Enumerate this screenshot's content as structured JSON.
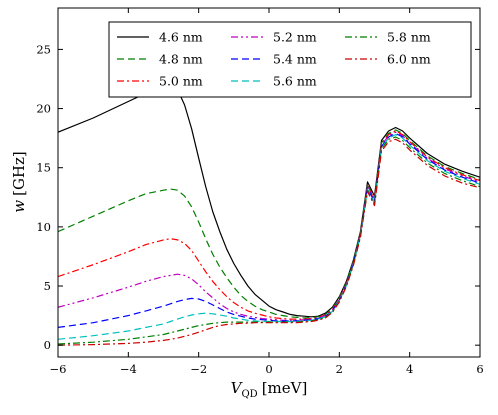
{
  "chart_data": {
    "type": "line",
    "xlabel": "V_QD [meV]",
    "xlabel_main": "V",
    "xlabel_sub": "QD",
    "xlabel_unit": "[meV]",
    "ylabel": "w [GHz]",
    "ylabel_main": "w",
    "ylabel_unit": "[GHz]",
    "xlim": [
      -6,
      6
    ],
    "ylim": [
      -1,
      28.5
    ],
    "xticks": [
      -6,
      -4,
      -2,
      0,
      2,
      4,
      6
    ],
    "xtick_labels": [
      "−6",
      "−4",
      "−2",
      "0",
      "2",
      "4",
      "6"
    ],
    "yticks": [
      0,
      5,
      10,
      15,
      20,
      25
    ],
    "ytick_labels": [
      "0",
      "5",
      "10",
      "15",
      "20",
      "25"
    ],
    "grid": false,
    "legend_position": "top-right",
    "legend_columns": 3,
    "series": [
      {
        "name": "4.6 nm",
        "color": "#000000",
        "dash": "solid",
        "x": [
          -6,
          -5,
          -4,
          -3.5,
          -3,
          -2.8,
          -2.6,
          -2.4,
          -2.2,
          -2,
          -1.8,
          -1.6,
          -1.4,
          -1.2,
          -1,
          -0.8,
          -0.6,
          -0.4,
          -0.2,
          0,
          0.2,
          0.4,
          0.6,
          0.8,
          1,
          1.2,
          1.4,
          1.6,
          1.8,
          2,
          2.2,
          2.4,
          2.6,
          2.8,
          3,
          3.2,
          3.4,
          3.6,
          3.8,
          4,
          4.5,
          5,
          5.5,
          6
        ],
        "y": [
          18.0,
          19.2,
          20.6,
          21.3,
          21.8,
          21.9,
          21.6,
          20.3,
          18.3,
          15.8,
          13.4,
          11.3,
          9.6,
          8.1,
          6.9,
          5.9,
          5.0,
          4.3,
          3.8,
          3.3,
          3.0,
          2.8,
          2.6,
          2.5,
          2.45,
          2.4,
          2.45,
          2.7,
          3.2,
          4.1,
          5.4,
          7.2,
          9.6,
          13.8,
          12.6,
          17.3,
          18.1,
          18.4,
          18.1,
          17.5,
          16.2,
          15.3,
          14.7,
          14.2
        ]
      },
      {
        "name": "4.8 nm",
        "color": "#007f00",
        "dash": "dashed",
        "x": [
          -6,
          -5,
          -4,
          -3.5,
          -3,
          -2.8,
          -2.6,
          -2.4,
          -2.2,
          -2,
          -1.8,
          -1.6,
          -1.4,
          -1.2,
          -1,
          -0.8,
          -0.6,
          -0.4,
          -0.2,
          0,
          0.2,
          0.4,
          0.6,
          0.8,
          1,
          1.2,
          1.4,
          1.6,
          1.8,
          2,
          2.2,
          2.4,
          2.6,
          2.8,
          3,
          3.2,
          3.4,
          3.6,
          3.8,
          4,
          4.5,
          5,
          5.5,
          6
        ],
        "y": [
          9.6,
          10.9,
          12.2,
          12.8,
          13.1,
          13.2,
          13.1,
          12.6,
          11.7,
          10.4,
          9.0,
          7.7,
          6.6,
          5.7,
          4.9,
          4.2,
          3.7,
          3.3,
          3.0,
          2.8,
          2.6,
          2.5,
          2.4,
          2.35,
          2.3,
          2.35,
          2.4,
          2.6,
          3.1,
          4.0,
          5.3,
          7.1,
          9.5,
          13.6,
          12.4,
          17.1,
          17.9,
          18.2,
          17.9,
          17.3,
          16.0,
          15.1,
          14.5,
          14.0
        ]
      },
      {
        "name": "5.0 nm",
        "color": "#ff0000",
        "dash": "dashdot",
        "x": [
          -6,
          -5,
          -4,
          -3.5,
          -3,
          -2.8,
          -2.6,
          -2.4,
          -2.2,
          -2,
          -1.8,
          -1.6,
          -1.4,
          -1.2,
          -1,
          -0.8,
          -0.6,
          -0.4,
          -0.2,
          0,
          0.2,
          0.4,
          0.6,
          0.8,
          1,
          1.2,
          1.4,
          1.6,
          1.8,
          2,
          2.2,
          2.4,
          2.6,
          2.8,
          3,
          3.2,
          3.4,
          3.6,
          3.8,
          4,
          4.5,
          5,
          5.5,
          6
        ],
        "y": [
          5.8,
          6.8,
          7.9,
          8.5,
          8.9,
          9.0,
          8.9,
          8.6,
          8.0,
          7.1,
          6.2,
          5.4,
          4.7,
          4.1,
          3.6,
          3.2,
          2.9,
          2.7,
          2.55,
          2.4,
          2.3,
          2.25,
          2.2,
          2.2,
          2.2,
          2.25,
          2.35,
          2.55,
          3.0,
          3.9,
          5.2,
          7.0,
          9.4,
          13.5,
          12.3,
          17.0,
          17.8,
          18.1,
          17.8,
          17.2,
          15.9,
          15.0,
          14.4,
          13.9
        ]
      },
      {
        "name": "5.2 nm",
        "color": "#bf00bf",
        "dash": "dashdotdot",
        "x": [
          -6,
          -5,
          -4,
          -3.5,
          -3,
          -2.8,
          -2.6,
          -2.4,
          -2.2,
          -2,
          -1.8,
          -1.6,
          -1.4,
          -1.2,
          -1,
          -0.8,
          -0.6,
          -0.4,
          -0.2,
          0,
          0.2,
          0.4,
          0.6,
          0.8,
          1,
          1.2,
          1.4,
          1.6,
          1.8,
          2,
          2.2,
          2.4,
          2.6,
          2.8,
          3,
          3.2,
          3.4,
          3.6,
          3.8,
          4,
          4.5,
          5,
          5.5,
          6
        ],
        "y": [
          3.2,
          4.0,
          4.9,
          5.4,
          5.8,
          5.9,
          6.0,
          5.9,
          5.6,
          5.1,
          4.5,
          4.0,
          3.5,
          3.1,
          2.8,
          2.6,
          2.45,
          2.35,
          2.25,
          2.2,
          2.15,
          2.1,
          2.1,
          2.1,
          2.15,
          2.2,
          2.3,
          2.5,
          2.95,
          3.85,
          5.15,
          6.95,
          9.35,
          13.4,
          12.2,
          16.9,
          17.7,
          18.0,
          17.7,
          17.1,
          15.8,
          14.9,
          14.3,
          13.8
        ]
      },
      {
        "name": "5.4 nm",
        "color": "#0000ff",
        "dash": "dashed",
        "x": [
          -6,
          -5,
          -4,
          -3.5,
          -3,
          -2.8,
          -2.6,
          -2.4,
          -2.2,
          -2,
          -1.8,
          -1.6,
          -1.4,
          -1.2,
          -1,
          -0.8,
          -0.6,
          -0.4,
          -0.2,
          0,
          0.2,
          0.4,
          0.6,
          0.8,
          1,
          1.2,
          1.4,
          1.6,
          1.8,
          2,
          2.2,
          2.4,
          2.6,
          2.8,
          3,
          3.2,
          3.4,
          3.6,
          3.8,
          4,
          4.5,
          5,
          5.5,
          6
        ],
        "y": [
          1.5,
          1.9,
          2.5,
          2.9,
          3.3,
          3.5,
          3.7,
          3.85,
          3.95,
          3.9,
          3.7,
          3.4,
          3.1,
          2.8,
          2.6,
          2.45,
          2.3,
          2.2,
          2.15,
          2.1,
          2.05,
          2.05,
          2.05,
          2.05,
          2.1,
          2.15,
          2.25,
          2.45,
          2.9,
          3.8,
          5.1,
          6.9,
          9.3,
          13.3,
          12.1,
          16.8,
          17.6,
          17.9,
          17.6,
          17.0,
          15.7,
          14.8,
          14.2,
          13.7
        ]
      },
      {
        "name": "5.6 nm",
        "color": "#00bfbf",
        "dash": "dashed",
        "x": [
          -6,
          -5,
          -4,
          -3.5,
          -3,
          -2.8,
          -2.6,
          -2.4,
          -2.2,
          -2,
          -1.8,
          -1.6,
          -1.4,
          -1.2,
          -1,
          -0.8,
          -0.6,
          -0.4,
          -0.2,
          0,
          0.2,
          0.4,
          0.6,
          0.8,
          1,
          1.2,
          1.4,
          1.6,
          1.8,
          2,
          2.2,
          2.4,
          2.6,
          2.8,
          3,
          3.2,
          3.4,
          3.6,
          3.8,
          4,
          4.5,
          5,
          5.5,
          6
        ],
        "y": [
          0.5,
          0.8,
          1.2,
          1.5,
          1.8,
          2.0,
          2.2,
          2.4,
          2.55,
          2.65,
          2.7,
          2.65,
          2.55,
          2.45,
          2.3,
          2.2,
          2.1,
          2.05,
          2.0,
          2.0,
          2.0,
          2.0,
          2.0,
          2.0,
          2.05,
          2.1,
          2.2,
          2.4,
          2.85,
          3.75,
          5.05,
          6.85,
          9.25,
          13.2,
          12.0,
          16.7,
          17.5,
          17.8,
          17.5,
          16.9,
          15.6,
          14.7,
          14.1,
          13.6
        ]
      },
      {
        "name": "5.8 nm",
        "color": "#007f00",
        "dash": "dashdot",
        "x": [
          -6,
          -5,
          -4,
          -3.5,
          -3,
          -2.8,
          -2.6,
          -2.4,
          -2.2,
          -2,
          -1.8,
          -1.6,
          -1.4,
          -1.2,
          -1,
          -0.8,
          -0.6,
          -0.4,
          -0.2,
          0,
          0.2,
          0.4,
          0.6,
          0.8,
          1,
          1.2,
          1.4,
          1.6,
          1.8,
          2,
          2.2,
          2.4,
          2.6,
          2.8,
          3,
          3.2,
          3.4,
          3.6,
          3.8,
          4,
          4.5,
          5,
          5.5,
          6
        ],
        "y": [
          0.1,
          0.25,
          0.5,
          0.7,
          0.9,
          1.05,
          1.2,
          1.35,
          1.5,
          1.65,
          1.75,
          1.85,
          1.9,
          1.95,
          1.95,
          1.95,
          1.95,
          1.95,
          1.95,
          1.95,
          1.95,
          1.95,
          1.95,
          1.95,
          2.0,
          2.05,
          2.15,
          2.35,
          2.8,
          3.7,
          5.0,
          6.8,
          9.2,
          13.1,
          11.9,
          16.6,
          17.4,
          17.6,
          17.3,
          16.7,
          15.4,
          14.5,
          13.9,
          13.4
        ]
      },
      {
        "name": "6.0 nm",
        "color": "#cc0000",
        "dash": "dashdot",
        "x": [
          -6,
          -5,
          -4,
          -3.5,
          -3,
          -2.8,
          -2.6,
          -2.4,
          -2.2,
          -2,
          -1.8,
          -1.6,
          -1.4,
          -1.2,
          -1,
          -0.8,
          -0.6,
          -0.4,
          -0.2,
          0,
          0.2,
          0.4,
          0.6,
          0.8,
          1,
          1.2,
          1.4,
          1.6,
          1.8,
          2,
          2.2,
          2.4,
          2.6,
          2.8,
          3,
          3.2,
          3.4,
          3.6,
          3.8,
          4,
          4.5,
          5,
          5.5,
          6
        ],
        "y": [
          0.0,
          0.05,
          0.15,
          0.25,
          0.4,
          0.5,
          0.6,
          0.75,
          0.9,
          1.1,
          1.3,
          1.5,
          1.65,
          1.75,
          1.8,
          1.85,
          1.85,
          1.9,
          1.9,
          1.9,
          1.9,
          1.9,
          1.9,
          1.9,
          1.95,
          2.0,
          2.1,
          2.3,
          2.75,
          3.65,
          4.95,
          6.75,
          9.1,
          13.0,
          11.8,
          16.4,
          17.2,
          17.4,
          17.1,
          16.5,
          15.2,
          14.3,
          13.7,
          13.3
        ]
      }
    ]
  }
}
